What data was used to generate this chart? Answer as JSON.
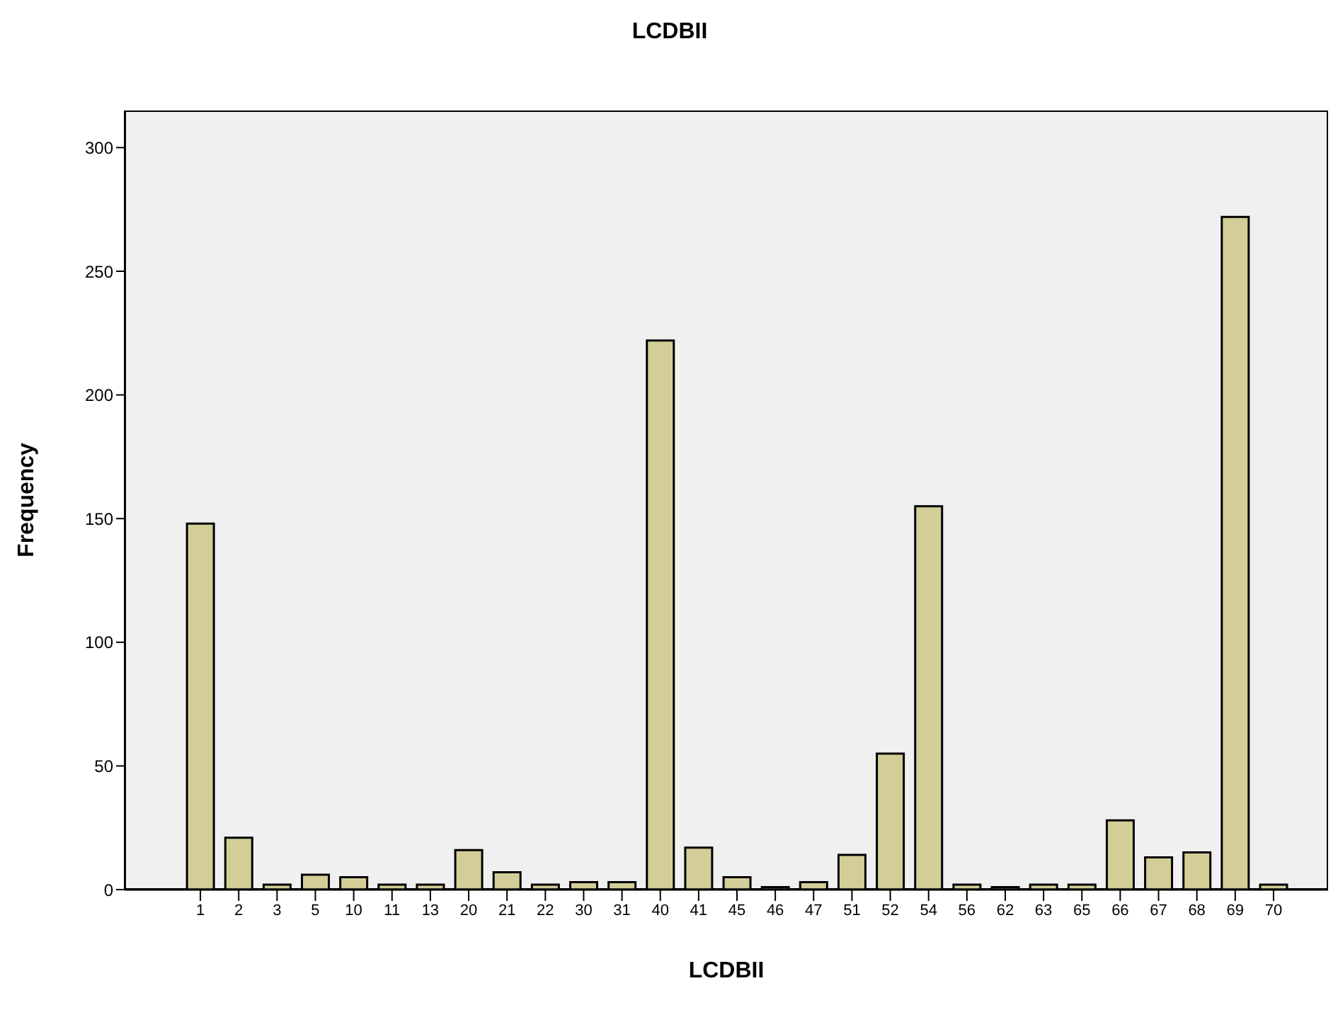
{
  "chart_data": {
    "type": "bar",
    "title": "LCDBII",
    "xlabel": "LCDBII",
    "ylabel": "Frequency",
    "categories": [
      "1",
      "2",
      "3",
      "5",
      "10",
      "11",
      "13",
      "20",
      "21",
      "22",
      "30",
      "31",
      "40",
      "41",
      "45",
      "46",
      "47",
      "51",
      "52",
      "54",
      "56",
      "62",
      "63",
      "65",
      "66",
      "67",
      "68",
      "69",
      "70"
    ],
    "values": [
      148,
      21,
      2,
      6,
      5,
      2,
      2,
      16,
      7,
      2,
      3,
      3,
      222,
      17,
      5,
      1,
      3,
      14,
      55,
      155,
      2,
      1,
      2,
      2,
      28,
      13,
      15,
      272,
      2
    ],
    "color": "#d3ce97",
    "ylim": [
      0,
      315
    ],
    "yticks": [
      0,
      50,
      100,
      150,
      200,
      250,
      300
    ],
    "grid": false,
    "legend": false
  }
}
